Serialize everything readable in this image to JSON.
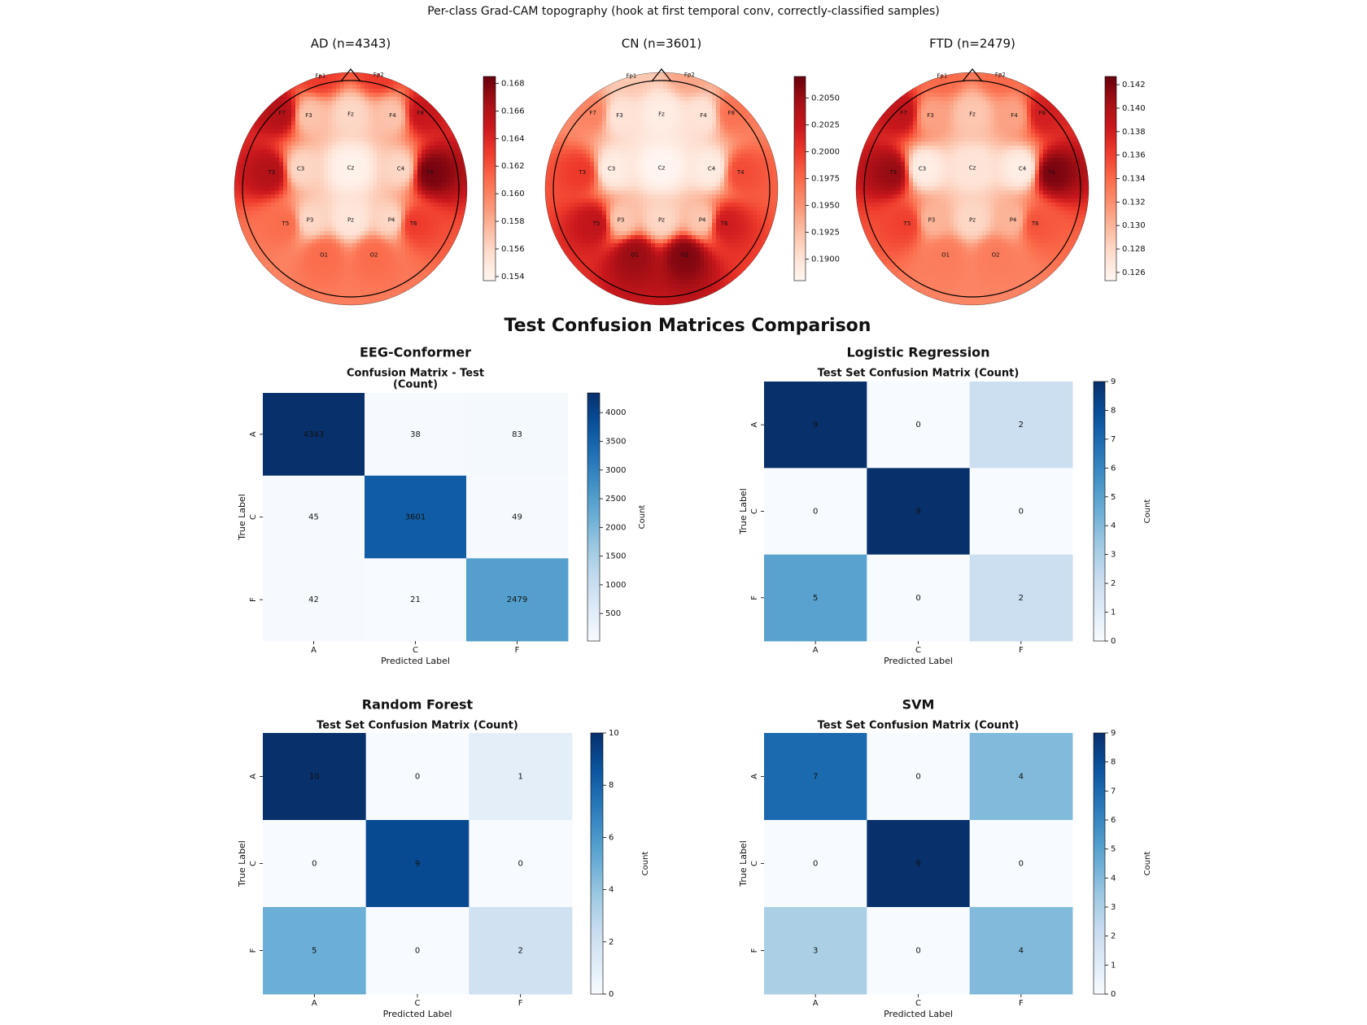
{
  "figure": {
    "title": "Per-class Grad-CAM topography (hook at first temporal conv, correctly-classified samples)",
    "section_title": "Test Confusion Matrices Comparison"
  },
  "chart_data": [
    {
      "type": "topomap",
      "title": "AD  (n=4343)",
      "cmap": "Reds",
      "channels": [
        "Fp1",
        "Fp2",
        "F7",
        "F3",
        "Fz",
        "F4",
        "F8",
        "T3",
        "C3",
        "Cz",
        "C4",
        "T4",
        "T5",
        "P3",
        "Pz",
        "P4",
        "T6",
        "O1",
        "O2"
      ],
      "values": [
        0.163,
        0.163,
        0.166,
        0.157,
        0.156,
        0.157,
        0.165,
        0.166,
        0.156,
        0.154,
        0.156,
        0.168,
        0.161,
        0.156,
        0.155,
        0.156,
        0.163,
        0.161,
        0.161
      ],
      "clim": [
        0.1537,
        0.1685
      ],
      "cticks": [
        0.154,
        0.156,
        0.158,
        {
          "value": 0.16,
          "label": "0.160"
        },
        0.162,
        0.164,
        0.166,
        0.168
      ]
    },
    {
      "type": "topomap",
      "title": "CN  (n=3601)",
      "cmap": "Reds",
      "channels": [
        "Fp1",
        "Fp2",
        "F7",
        "F3",
        "Fz",
        "F4",
        "F8",
        "T3",
        "C3",
        "Cz",
        "C4",
        "T4",
        "T5",
        "P3",
        "Pz",
        "P4",
        "T6",
        "O1",
        "O2"
      ],
      "values": [
        0.192,
        0.194,
        0.196,
        0.19,
        0.189,
        0.19,
        0.197,
        0.2,
        0.189,
        0.188,
        0.189,
        0.199,
        0.203,
        0.192,
        0.191,
        0.192,
        0.202,
        0.205,
        0.206
      ],
      "clim": [
        0.188,
        0.207
      ],
      "cticks": [
        {
          "value": 0.19,
          "label": "0.1900"
        },
        {
          "value": 0.1925,
          "label": "0.1925"
        },
        {
          "value": 0.195,
          "label": "0.1950"
        },
        {
          "value": 0.1975,
          "label": "0.1975"
        },
        {
          "value": 0.2,
          "label": "0.2000"
        },
        {
          "value": 0.2025,
          "label": "0.2025"
        },
        {
          "value": 0.205,
          "label": "0.2050"
        }
      ]
    },
    {
      "type": "topomap",
      "title": "FTD  (n=2479)",
      "cmap": "Reds",
      "channels": [
        "Fp1",
        "Fp2",
        "F7",
        "F3",
        "Fz",
        "F4",
        "F8",
        "T3",
        "C3",
        "Cz",
        "C4",
        "T4",
        "T5",
        "P3",
        "Pz",
        "P4",
        "T6",
        "O1",
        "O2"
      ],
      "values": [
        0.134,
        0.134,
        0.139,
        0.131,
        0.129,
        0.131,
        0.138,
        0.141,
        0.126,
        0.127,
        0.126,
        0.142,
        0.136,
        0.13,
        0.128,
        0.13,
        0.135,
        0.133,
        0.133
      ],
      "clim": [
        0.1253,
        0.1427
      ],
      "cticks": [
        0.126,
        0.128,
        {
          "value": 0.13,
          "label": "0.130"
        },
        0.132,
        0.134,
        0.136,
        0.138,
        {
          "value": 0.14,
          "label": "0.140"
        },
        0.142
      ]
    },
    {
      "type": "heatmap",
      "title": "EEG-Conformer",
      "subtitle_lines": [
        "Confusion Matrix - Test",
        "(Count)"
      ],
      "cmap": "Blues",
      "x_categories": [
        "A",
        "C",
        "F"
      ],
      "y_categories": [
        "A",
        "C",
        "F"
      ],
      "values": [
        [
          4343,
          38,
          83
        ],
        [
          45,
          3601,
          49
        ],
        [
          42,
          21,
          2479
        ]
      ],
      "xlabel": "Predicted Label",
      "ylabel": "True Label",
      "colorbar_label": "Count",
      "clim": [
        21,
        4343
      ],
      "cticks": [
        500,
        1000,
        1500,
        2000,
        2500,
        3000,
        3500,
        4000
      ]
    },
    {
      "type": "heatmap",
      "title": "Logistic Regression",
      "subtitle_lines": [
        "Test Set Confusion Matrix (Count)"
      ],
      "cmap": "Blues",
      "x_categories": [
        "A",
        "C",
        "F"
      ],
      "y_categories": [
        "A",
        "C",
        "F"
      ],
      "values": [
        [
          9,
          0,
          2
        ],
        [
          0,
          9,
          0
        ],
        [
          5,
          0,
          2
        ]
      ],
      "xlabel": "Predicted Label",
      "ylabel": "True Label",
      "colorbar_label": "Count",
      "clim": [
        0,
        9
      ],
      "cticks": [
        0,
        1,
        2,
        3,
        4,
        5,
        6,
        7,
        8,
        9
      ]
    },
    {
      "type": "heatmap",
      "title": "Random Forest",
      "subtitle_lines": [
        "Test Set Confusion Matrix (Count)"
      ],
      "cmap": "Blues",
      "x_categories": [
        "A",
        "C",
        "F"
      ],
      "y_categories": [
        "A",
        "C",
        "F"
      ],
      "values": [
        [
          10,
          0,
          1
        ],
        [
          0,
          9,
          0
        ],
        [
          5,
          0,
          2
        ]
      ],
      "xlabel": "Predicted Label",
      "ylabel": "True Label",
      "colorbar_label": "Count",
      "clim": [
        0,
        10
      ],
      "cticks": [
        0,
        2,
        4,
        6,
        8,
        10
      ]
    },
    {
      "type": "heatmap",
      "title": "SVM",
      "subtitle_lines": [
        "Test Set Confusion Matrix (Count)"
      ],
      "cmap": "Blues",
      "x_categories": [
        "A",
        "C",
        "F"
      ],
      "y_categories": [
        "A",
        "C",
        "F"
      ],
      "values": [
        [
          7,
          0,
          4
        ],
        [
          0,
          9,
          0
        ],
        [
          3,
          0,
          4
        ]
      ],
      "xlabel": "Predicted Label",
      "ylabel": "True Label",
      "colorbar_label": "Count",
      "clim": [
        0,
        9
      ],
      "cticks": [
        0,
        1,
        2,
        3,
        4,
        5,
        6,
        7,
        8,
        9
      ]
    }
  ]
}
